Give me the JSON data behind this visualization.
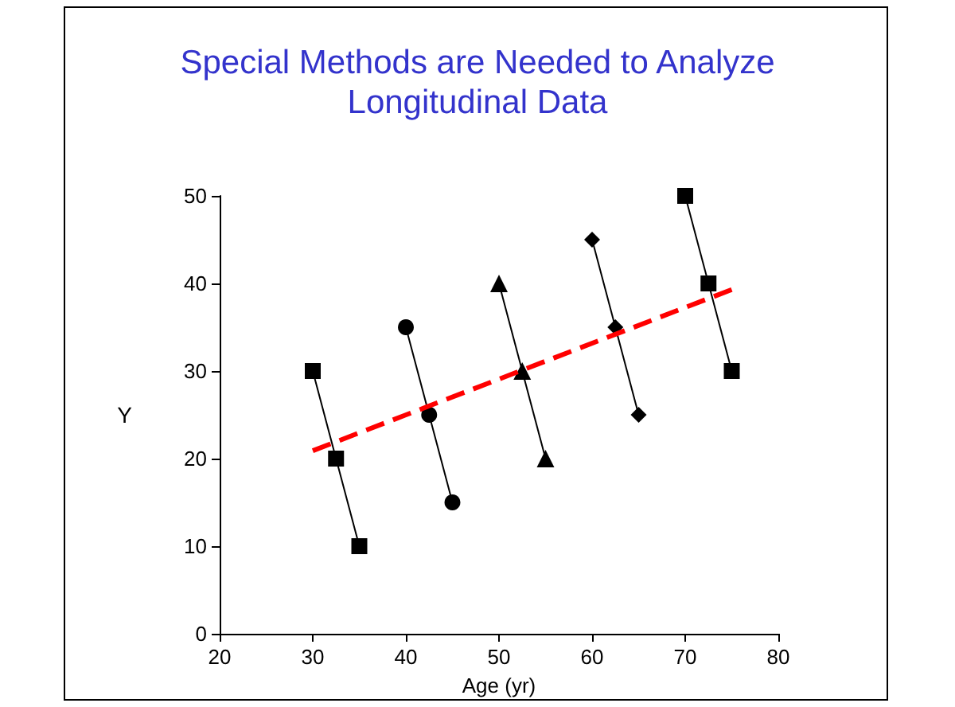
{
  "chart_data": {
    "type": "line",
    "title": "Special Methods are Needed to Analyze\nLongitudinal Data",
    "xlabel": "Age (yr)",
    "ylabel": "Y",
    "xlim": [
      20,
      80
    ],
    "xticks": [
      20,
      30,
      40,
      50,
      60,
      70,
      80
    ],
    "ylim": [
      0,
      50
    ],
    "yticks": [
      0,
      10,
      20,
      30,
      40,
      50
    ],
    "grid": false,
    "line_style": "solid",
    "series": [
      {
        "color": "#000000",
        "marker": "square",
        "x": [
          30,
          32.5,
          35
        ],
        "values": [
          30,
          20,
          10
        ]
      },
      {
        "color": "#000000",
        "marker": "circle",
        "x": [
          40,
          42.5,
          45
        ],
        "values": [
          35,
          25,
          15
        ]
      },
      {
        "color": "#000000",
        "marker": "triangle",
        "x": [
          50,
          52.5,
          55
        ],
        "values": [
          40,
          30,
          20
        ]
      },
      {
        "color": "#000000",
        "marker": "diamond",
        "x": [
          60,
          62.5,
          65
        ],
        "values": [
          45,
          35,
          25
        ]
      },
      {
        "color": "#000000",
        "marker": "square",
        "x": [
          70,
          72.5,
          75
        ],
        "values": [
          50,
          40,
          30
        ]
      },
      {
        "color": "#ff0000",
        "marker": "none",
        "line_style": "dashed",
        "x": [
          30,
          75
        ],
        "values": [
          20.9,
          39.3
        ]
      }
    ]
  }
}
